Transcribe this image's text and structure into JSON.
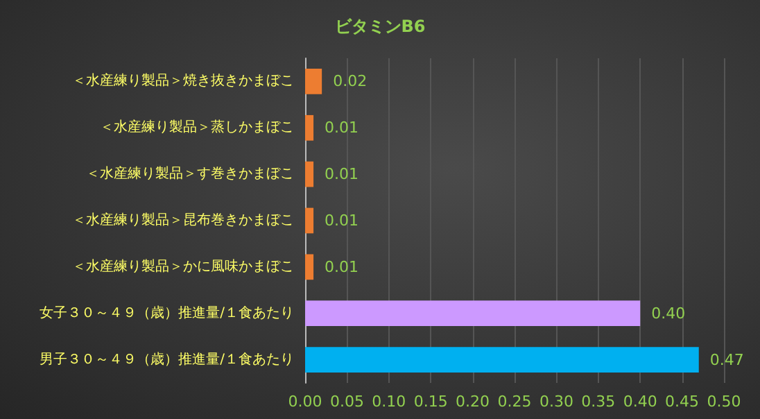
{
  "chart_data": {
    "type": "bar",
    "orientation": "horizontal",
    "title": "ビタミンB6",
    "categories": [
      "＜水産練り製品＞焼き抜きかまぼこ",
      "＜水産練り製品＞蒸しかまぼこ",
      "＜水産練り製品＞す巻きかまぼこ",
      "＜水産練り製品＞昆布巻きかまぼこ",
      "＜水産練り製品＞かに風味かまぼこ",
      "女子３０～４９（歳）推進量/１食あたり",
      "男子３０～４９（歳）推進量/１食あたり"
    ],
    "values": [
      0.02,
      0.01,
      0.01,
      0.01,
      0.01,
      0.4,
      0.47
    ],
    "value_labels": [
      "0.02",
      "0.01",
      "0.01",
      "0.01",
      "0.01",
      "0.40",
      "0.47"
    ],
    "colors": [
      "#ed7d31",
      "#ed7d31",
      "#ed7d31",
      "#ed7d31",
      "#ed7d31",
      "#cc99ff",
      "#00b0f0"
    ],
    "xlim": [
      0,
      0.5
    ],
    "xticks": [
      "0.00",
      "0.05",
      "0.10",
      "0.15",
      "0.20",
      "0.25",
      "0.30",
      "0.35",
      "0.40",
      "0.45",
      "0.50"
    ],
    "grid": "x"
  }
}
